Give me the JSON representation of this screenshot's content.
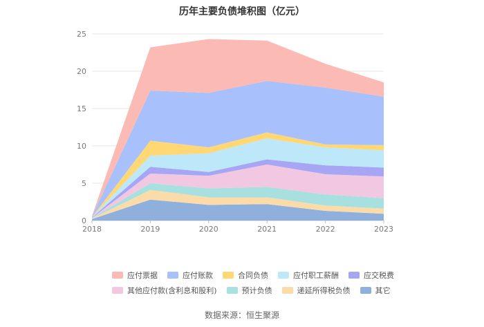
{
  "chart_data": {
    "type": "area",
    "title": "历年主要负债堆积图（亿元）",
    "x": [
      "2018",
      "2019",
      "2020",
      "2021",
      "2022",
      "2023"
    ],
    "ylim": [
      0,
      25
    ],
    "yticks": [
      0,
      5,
      10,
      15,
      20,
      25
    ],
    "stacked": true,
    "grid": true,
    "legend_position": "bottom",
    "series": [
      {
        "name": "其它",
        "color": "#8fb0dc",
        "values": [
          0.2,
          2.8,
          2.1,
          2.2,
          1.3,
          0.9
        ]
      },
      {
        "name": "递延所得税负债",
        "color": "#fbdca9",
        "values": [
          0.05,
          1.3,
          1.0,
          0.9,
          0.7,
          0.7
        ]
      },
      {
        "name": "预计负债",
        "color": "#a8e0df",
        "values": [
          0.05,
          0.9,
          1.2,
          1.4,
          1.5,
          1.4
        ]
      },
      {
        "name": "其他应付款(含利息和股利)",
        "color": "#f2c7e1",
        "values": [
          0.05,
          1.3,
          1.7,
          3.0,
          2.7,
          2.9
        ]
      },
      {
        "name": "应交税费",
        "color": "#a6a6f5",
        "values": [
          0.05,
          0.9,
          0.5,
          0.7,
          1.2,
          1.2
        ]
      },
      {
        "name": "应付职工薪酬",
        "color": "#bce8fa",
        "values": [
          0.05,
          1.5,
          2.5,
          2.8,
          2.4,
          2.3
        ]
      },
      {
        "name": "合同负债",
        "color": "#ffd774",
        "values": [
          0,
          2.0,
          0.8,
          0.8,
          0.4,
          0.7
        ]
      },
      {
        "name": "应付账款",
        "color": "#a8c0fb",
        "values": [
          0.1,
          6.7,
          7.3,
          6.9,
          7.6,
          6.5
        ]
      },
      {
        "name": "应付票据",
        "color": "#fbbab4",
        "values": [
          0.05,
          5.8,
          7.2,
          5.4,
          3.2,
          1.9
        ]
      }
    ],
    "legend_rows": [
      [
        "应付票据",
        "应付账款",
        "合同负债",
        "应付职工薪酬",
        "应交税费"
      ],
      [
        "其他应付款(含利息和股利)",
        "预计负债",
        "递延所得税负债",
        "其它"
      ]
    ]
  },
  "source_text": "数据来源：恒生聚源"
}
